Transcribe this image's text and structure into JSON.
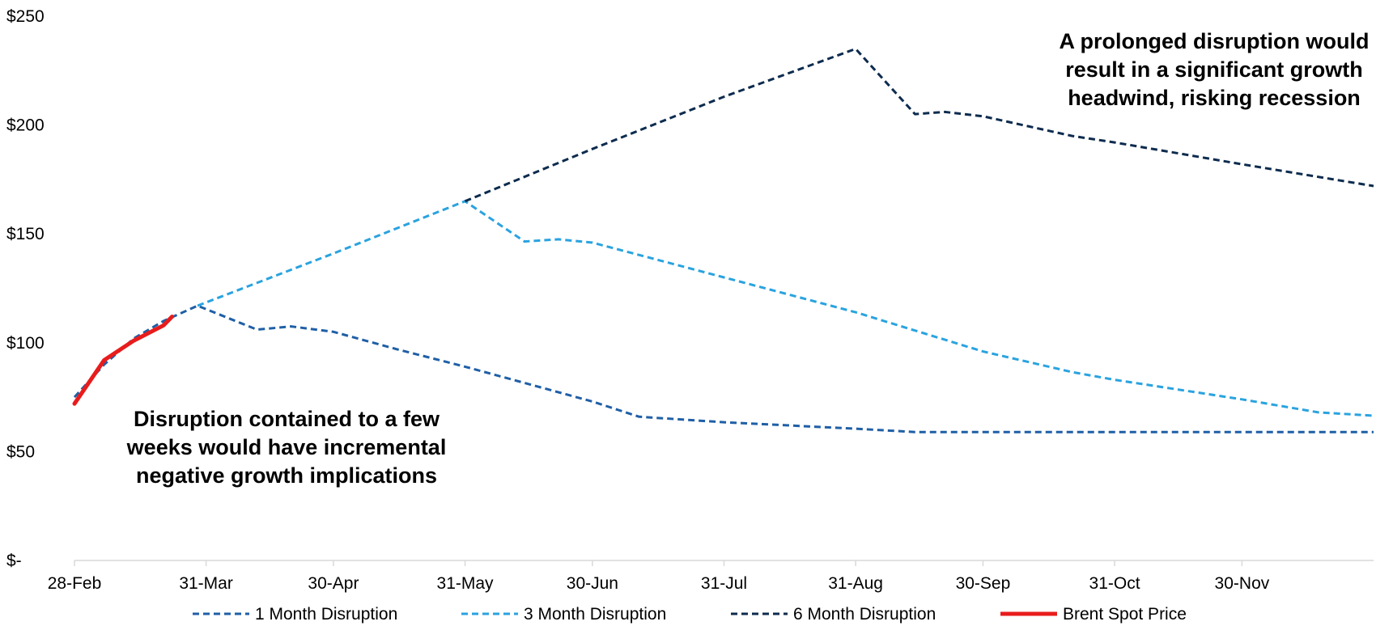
{
  "chart_data": {
    "type": "line",
    "title": "",
    "xlabel": "",
    "ylabel": "",
    "ylim": [
      0,
      250
    ],
    "yticks": [
      0,
      50,
      100,
      150,
      200,
      250
    ],
    "ytick_labels": [
      "$-",
      "$50",
      "$100",
      "$150",
      "$200",
      "$250"
    ],
    "xlim": [
      "2022-02-28",
      "2022-12-31"
    ],
    "xticks": [
      "2022-02-28",
      "2022-03-31",
      "2022-04-30",
      "2022-05-31",
      "2022-06-30",
      "2022-07-31",
      "2022-08-31",
      "2022-09-30",
      "2022-10-31",
      "2022-11-30"
    ],
    "xtick_labels": [
      "28-Feb",
      "31-Mar",
      "30-Apr",
      "31-May",
      "30-Jun",
      "31-Jul",
      "31-Aug",
      "30-Sep",
      "31-Oct",
      "30-Nov"
    ],
    "grid": false,
    "legend": "bottom",
    "series": [
      {
        "name": "1 Month Disruption",
        "color": "#1f5fa6",
        "style": "dashed",
        "points": [
          [
            "2022-02-28",
            75
          ],
          [
            "2022-03-07",
            90
          ],
          [
            "2022-03-14",
            102
          ],
          [
            "2022-03-21",
            110
          ],
          [
            "2022-03-29",
            117
          ],
          [
            "2022-04-12",
            106
          ],
          [
            "2022-04-20",
            107.5
          ],
          [
            "2022-04-30",
            105
          ],
          [
            "2022-05-15",
            97
          ],
          [
            "2022-05-31",
            89
          ],
          [
            "2022-06-15",
            81
          ],
          [
            "2022-06-30",
            73
          ],
          [
            "2022-07-11",
            66
          ],
          [
            "2022-07-31",
            63.5
          ],
          [
            "2022-08-31",
            60.5
          ],
          [
            "2022-09-14",
            59
          ],
          [
            "2022-09-30",
            59
          ],
          [
            "2022-10-31",
            59
          ],
          [
            "2022-11-30",
            59
          ],
          [
            "2022-12-31",
            59
          ]
        ]
      },
      {
        "name": "3 Month Disruption",
        "color": "#2aa3df",
        "style": "dashed",
        "points": [
          [
            "2022-03-29",
            117
          ],
          [
            "2022-04-30",
            141
          ],
          [
            "2022-05-31",
            165
          ],
          [
            "2022-06-14",
            146.5
          ],
          [
            "2022-06-22",
            147.5
          ],
          [
            "2022-06-30",
            146
          ],
          [
            "2022-07-31",
            130
          ],
          [
            "2022-08-31",
            114
          ],
          [
            "2022-09-30",
            96
          ],
          [
            "2022-10-21",
            86.5
          ],
          [
            "2022-10-31",
            83
          ],
          [
            "2022-11-30",
            74
          ],
          [
            "2022-12-18",
            68
          ],
          [
            "2022-12-31",
            66.5
          ]
        ]
      },
      {
        "name": "6 Month Disruption",
        "color": "#0d2b4e",
        "style": "dashed",
        "points": [
          [
            "2022-05-31",
            165
          ],
          [
            "2022-06-30",
            189
          ],
          [
            "2022-07-31",
            213
          ],
          [
            "2022-08-31",
            235
          ],
          [
            "2022-09-14",
            205
          ],
          [
            "2022-09-21",
            206
          ],
          [
            "2022-09-30",
            204
          ],
          [
            "2022-10-21",
            195
          ],
          [
            "2022-10-31",
            192
          ],
          [
            "2022-11-30",
            182
          ],
          [
            "2022-12-31",
            172
          ]
        ]
      },
      {
        "name": "Brent Spot Price",
        "color": "#e81c1c",
        "style": "solid",
        "points": [
          [
            "2022-02-28",
            72
          ],
          [
            "2022-03-07",
            92
          ],
          [
            "2022-03-14",
            101
          ],
          [
            "2022-03-21",
            108
          ],
          [
            "2022-03-23",
            112
          ]
        ]
      }
    ],
    "annotations": [
      {
        "lines": [
          "A prolonged disruption would",
          "result in a significant growth",
          "headwind, risking recession"
        ]
      },
      {
        "lines": [
          "Disruption contained to a few",
          "weeks would have incremental",
          "negative growth implications"
        ]
      }
    ]
  }
}
